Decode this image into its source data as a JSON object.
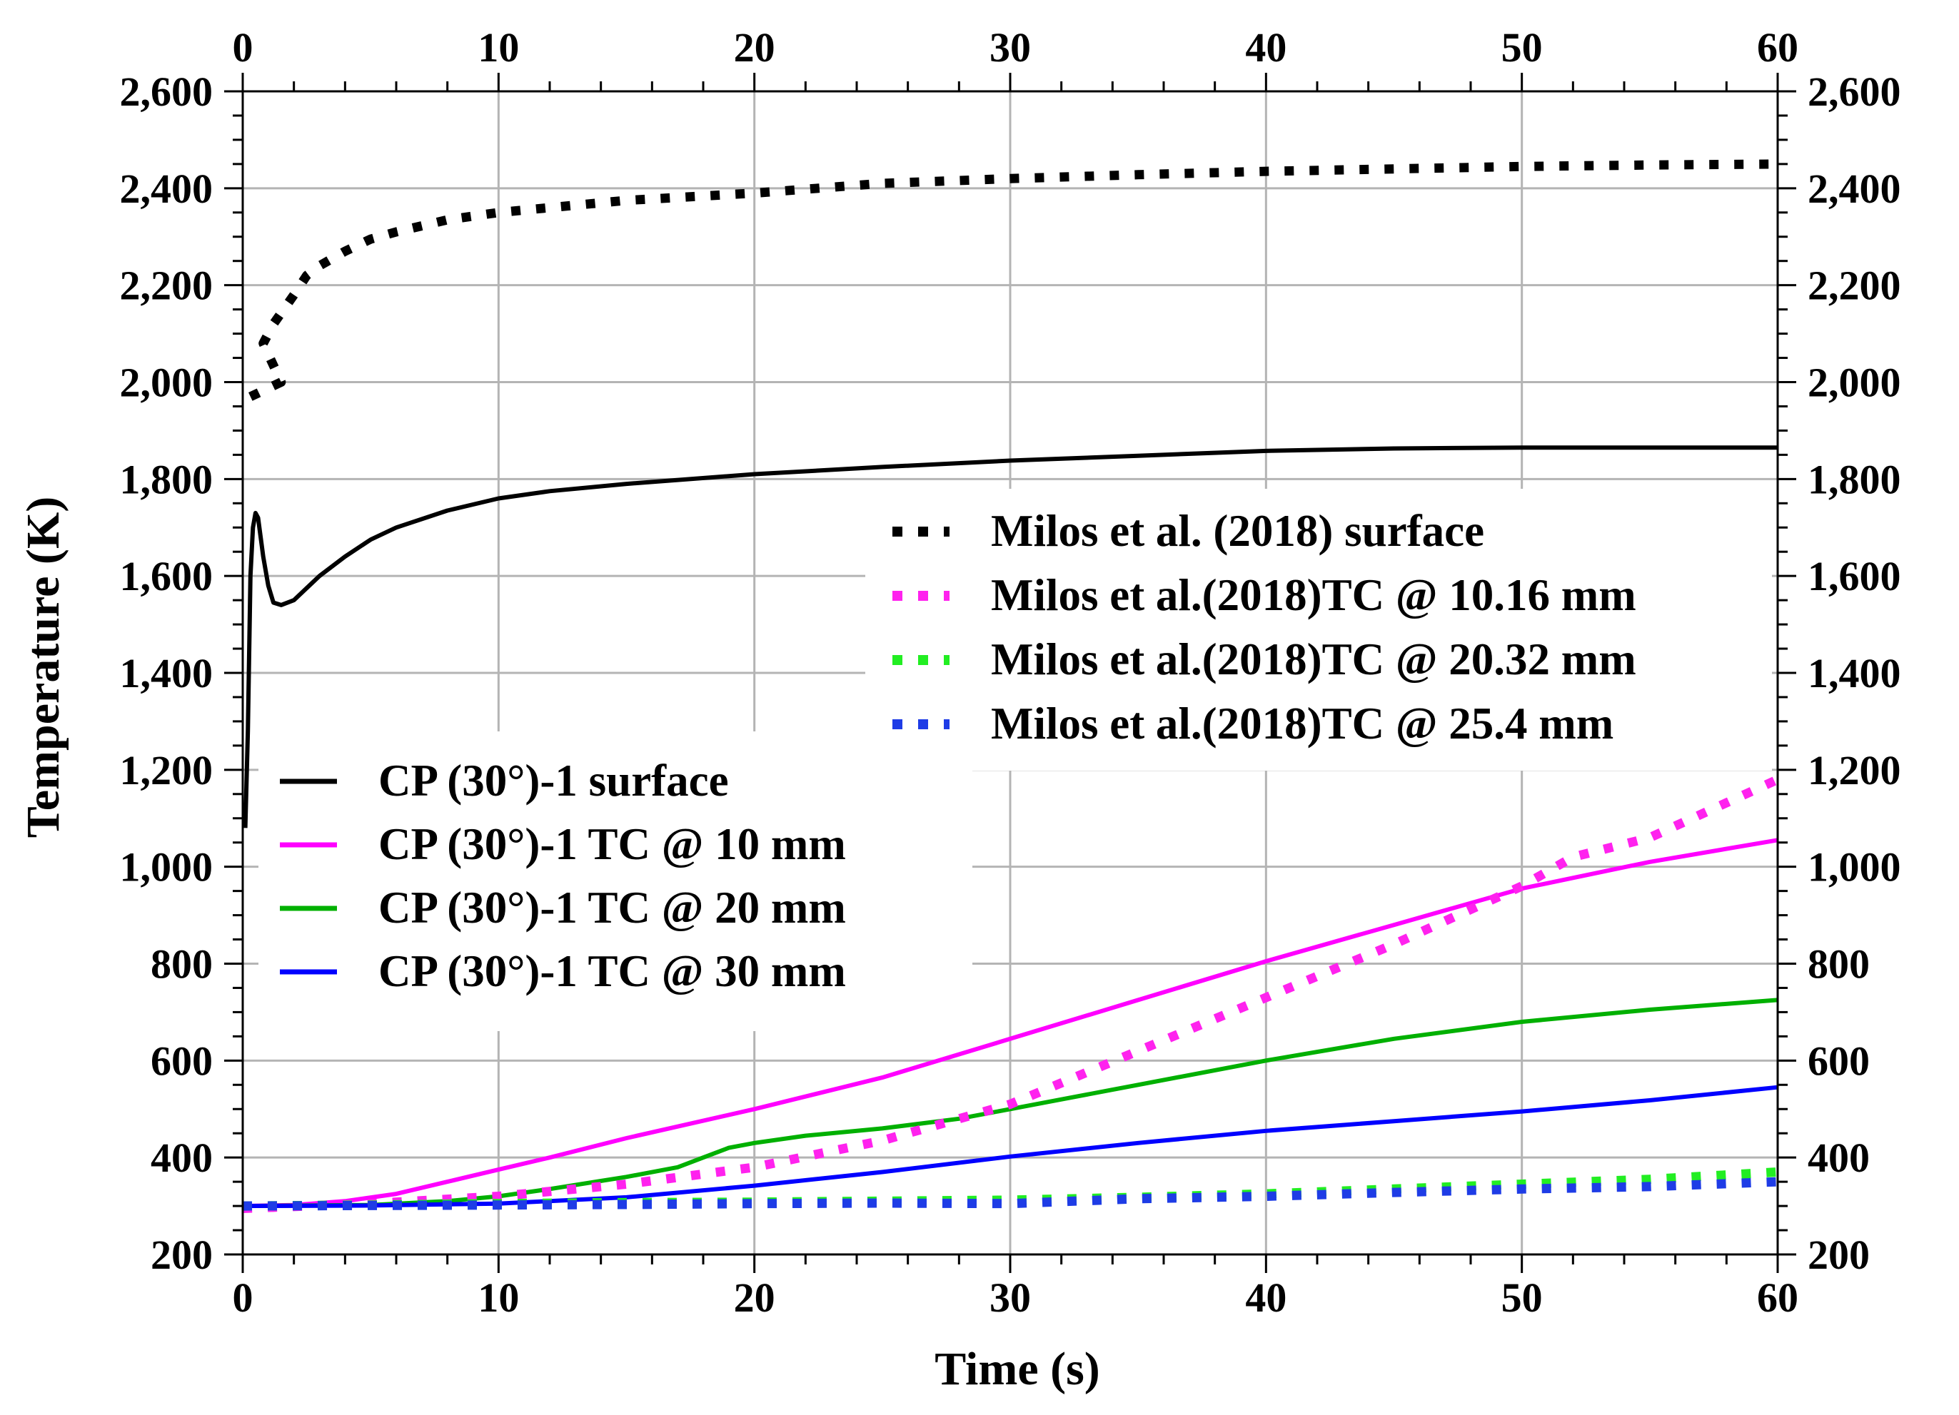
{
  "chart_data": {
    "type": "line",
    "title": "",
    "xlabel": "Time (s)",
    "ylabel": "Temperature (K)",
    "xlim": [
      0,
      60
    ],
    "ylim": [
      200,
      2600
    ],
    "xticks": [
      0,
      10,
      20,
      30,
      40,
      50,
      60
    ],
    "xtick_labels": [
      "0",
      "10",
      "20",
      "30",
      "40",
      "50",
      "60"
    ],
    "yticks": [
      200,
      400,
      600,
      800,
      1000,
      1200,
      1400,
      1600,
      1800,
      2000,
      2200,
      2400,
      2600
    ],
    "ytick_labels": [
      "200",
      "400",
      "600",
      "800",
      "1,000",
      "1,200",
      "1,400",
      "1,600",
      "1,800",
      "2,000",
      "2,200",
      "2,400",
      "2,600"
    ],
    "grid": true,
    "series": [
      {
        "name": "CP (30°)-1 surface",
        "color": "#000000",
        "style": "solid",
        "x": [
          0.1,
          0.2,
          0.3,
          0.4,
          0.5,
          0.6,
          0.7,
          0.8,
          1.0,
          1.2,
          1.5,
          2.0,
          3,
          4,
          5,
          6,
          8,
          10,
          12,
          15,
          20,
          25,
          30,
          35,
          40,
          45,
          50,
          55,
          60
        ],
        "y": [
          1080,
          1280,
          1600,
          1700,
          1730,
          1720,
          1680,
          1640,
          1580,
          1545,
          1540,
          1550,
          1600,
          1640,
          1675,
          1700,
          1735,
          1760,
          1775,
          1790,
          1810,
          1825,
          1838,
          1848,
          1858,
          1863,
          1865,
          1865,
          1865
        ]
      },
      {
        "name": "CP (30°)-1 TC @ 10 mm",
        "color": "#ff00ff",
        "style": "solid",
        "x": [
          0,
          2,
          4,
          6,
          8,
          10,
          12,
          15,
          20,
          25,
          30,
          35,
          40,
          45,
          50,
          55,
          60
        ],
        "y": [
          300,
          302,
          310,
          325,
          350,
          375,
          400,
          440,
          500,
          565,
          645,
          725,
          805,
          880,
          955,
          1010,
          1055
        ]
      },
      {
        "name": "CP (30°)-1 TC @ 20 mm",
        "color": "#00b000",
        "style": "solid",
        "x": [
          0,
          5,
          8,
          10,
          12,
          15,
          17,
          18,
          19,
          20,
          22,
          25,
          28,
          30,
          32,
          35,
          40,
          45,
          50,
          55,
          60
        ],
        "y": [
          300,
          302,
          310,
          320,
          335,
          360,
          380,
          400,
          420,
          430,
          445,
          460,
          480,
          500,
          520,
          550,
          600,
          645,
          680,
          705,
          725
        ]
      },
      {
        "name": "CP (30°)-1 TC @ 30 mm",
        "color": "#0000ff",
        "style": "solid",
        "x": [
          0,
          5,
          10,
          15,
          20,
          25,
          30,
          35,
          40,
          45,
          50,
          55,
          60
        ],
        "y": [
          300,
          301,
          305,
          318,
          342,
          370,
          402,
          430,
          455,
          475,
          495,
          518,
          545
        ]
      },
      {
        "name": "Milos et al. (2018) surface",
        "color": "#000000",
        "style": "dotted",
        "x": [
          0.3,
          1.5,
          0.8,
          1.2,
          2.0,
          2.5,
          3,
          4,
          5,
          6,
          8,
          10,
          12,
          15,
          20,
          25,
          30,
          35,
          40,
          45,
          50,
          55,
          60
        ],
        "y": [
          1970,
          2000,
          2080,
          2120,
          2180,
          2220,
          2240,
          2270,
          2295,
          2310,
          2335,
          2350,
          2360,
          2375,
          2390,
          2410,
          2420,
          2428,
          2435,
          2440,
          2445,
          2448,
          2450
        ]
      },
      {
        "name": "Milos et al.(2018)TC @ 10.16 mm",
        "color": "#ff22ee",
        "style": "dotted",
        "x": [
          0,
          5,
          10,
          15,
          20,
          25,
          30,
          35,
          40,
          45,
          50,
          52,
          55,
          60
        ],
        "y": [
          295,
          305,
          320,
          345,
          380,
          435,
          510,
          620,
          730,
          840,
          960,
          1020,
          1060,
          1180
        ]
      },
      {
        "name": "Milos et al.(2018)TC @ 20.32 mm",
        "color": "#22ee22",
        "style": "dotted",
        "x": [
          0,
          5,
          10,
          15,
          20,
          25,
          30,
          35,
          40,
          45,
          50,
          55,
          60
        ],
        "y": [
          300,
          302,
          305,
          307,
          308,
          310,
          312,
          318,
          325,
          335,
          345,
          355,
          370
        ]
      },
      {
        "name": "Milos et al.(2018)TC @ 25.4 mm",
        "color": "#1e3ce6",
        "style": "dotted",
        "x": [
          0,
          5,
          10,
          15,
          20,
          25,
          30,
          35,
          40,
          45,
          50,
          55,
          60
        ],
        "y": [
          300,
          301,
          302,
          303,
          305,
          306,
          305,
          315,
          320,
          328,
          335,
          340,
          350
        ]
      }
    ],
    "legends": [
      {
        "placement": "lower-left",
        "entries": [
          "CP (30°)-1 surface",
          "CP (30°)-1 TC @ 10 mm",
          "CP (30°)-1 TC @ 20 mm",
          "CP (30°)-1 TC @ 30 mm"
        ]
      },
      {
        "placement": "center-right",
        "entries": [
          "Milos et al. (2018) surface",
          "Milos et al.(2018)TC @ 10.16 mm",
          "Milos et al.(2018)TC @ 20.32 mm",
          "Milos et al.(2018)TC @ 25.4 mm"
        ]
      }
    ]
  }
}
